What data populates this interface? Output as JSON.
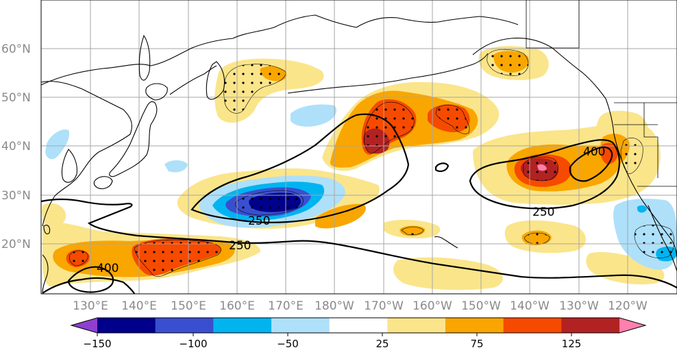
{
  "map": {
    "lat_labels": [
      "60°N",
      "50°N",
      "40°N",
      "30°N",
      "20°N"
    ],
    "lon_labels": [
      "130°E",
      "140°E",
      "150°E",
      "160°E",
      "170°E",
      "180°W",
      "170°W",
      "160°W",
      "150°W",
      "140°W",
      "130°W",
      "120°W"
    ],
    "contour_labels": [
      {
        "id": "c400-west",
        "text": "400"
      },
      {
        "id": "c250-southwest",
        "text": "250"
      },
      {
        "id": "c250-center",
        "text": "250"
      },
      {
        "id": "c250-east",
        "text": "250"
      },
      {
        "id": "c400-east",
        "text": "400"
      }
    ],
    "land_color": "#ffffff",
    "coast_color": "#000000"
  },
  "colorbar": {
    "tick_labels": [
      "−150",
      "−100",
      "−50",
      "25",
      "75",
      "125"
    ],
    "colors": [
      "#8e3fd0",
      "#00008b",
      "#3a4fcf",
      "#00b4f0",
      "#aee0fa",
      "#ffffff",
      "#fbe58a",
      "#f9a600",
      "#f64a00",
      "#b22222",
      "#ff7fae"
    ],
    "extend": "both"
  }
}
